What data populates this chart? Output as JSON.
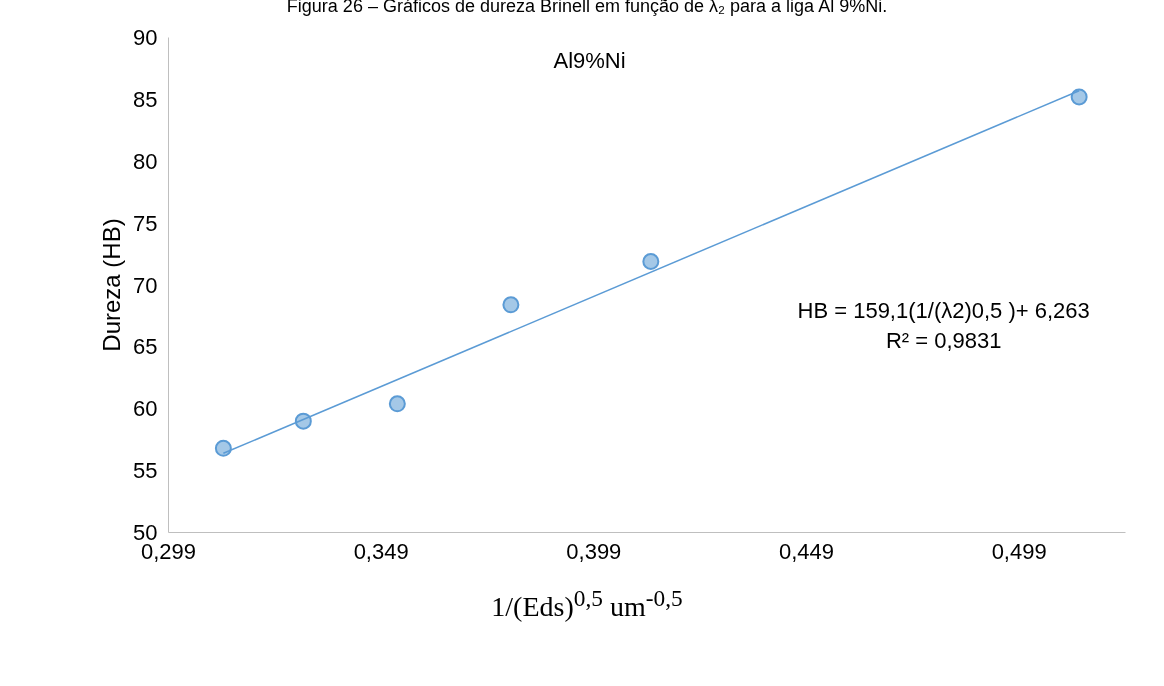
{
  "chart_data": {
    "type": "scatter",
    "title": "Figura 26 – Gráficos de dureza Brinell em função de λ₂ para a liga Al 9%Ni.",
    "subtitle": "Al9%Ni",
    "xlabel": "1/(Eds)$^{0,5}$ um$^{-0,5}$",
    "ylabel": "Dureza (HB)",
    "annotations": [
      "HB = 159,1(1/(λ2)0,5 )+ 6,263",
      "R² = 0,9831"
    ],
    "xlim": [
      0.299,
      0.524
    ],
    "xticks": [
      {
        "value": 0.299,
        "label": "0,299"
      },
      {
        "value": 0.349,
        "label": "0,349"
      },
      {
        "value": 0.399,
        "label": "0,399"
      },
      {
        "value": 0.449,
        "label": "0,449"
      },
      {
        "value": 0.499,
        "label": "0,499"
      }
    ],
    "ylim": [
      50,
      90
    ],
    "yticks": [
      50,
      55,
      60,
      65,
      70,
      75,
      80,
      85,
      90
    ],
    "grid": false,
    "series": [
      {
        "marker": "circle",
        "color": "#5b9bd5",
        "x": [
          0.3119,
          0.3307,
          0.3528,
          0.3795,
          0.4124,
          0.5131
        ],
        "values": [
          56.8,
          59.0,
          60.4,
          68.4,
          71.9,
          85.2
        ]
      },
      {
        "type": "line",
        "marker": "none",
        "color": "#5b9bd5",
        "line_style": "solid",
        "x": [
          0.3119,
          0.5131
        ],
        "values": [
          56.4,
          85.7
        ]
      }
    ]
  }
}
